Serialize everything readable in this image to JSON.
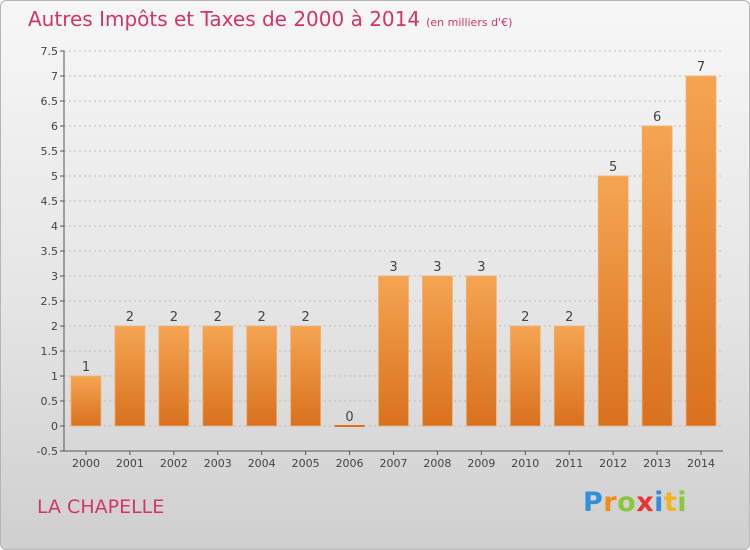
{
  "title": "Autres Impôts et Taxes de 2000 à 2014",
  "unit": "(en milliers d'€)",
  "commune": "LA CHAPELLE",
  "logo": {
    "text": "Proxiti",
    "letters": [
      "P",
      "r",
      "o",
      "x",
      "i",
      "t",
      "i"
    ],
    "colors": [
      "#2f8fd8",
      "#f28c1e",
      "#8cc63f",
      "#e8352f",
      "#2f8fd8",
      "#f2b51e",
      "#8cc63f"
    ]
  },
  "colors": {
    "bar_top": "#f5a552",
    "bar_bottom": "#d9711d",
    "title": "#d6336c",
    "axis": "#555555",
    "grid": "#bdbdbd"
  },
  "chart_data": {
    "type": "bar",
    "categories": [
      "2000",
      "2001",
      "2002",
      "2003",
      "2004",
      "2005",
      "2006",
      "2007",
      "2008",
      "2009",
      "2010",
      "2011",
      "2012",
      "2013",
      "2014"
    ],
    "values": [
      1,
      2,
      2,
      2,
      2,
      2,
      0,
      3,
      3,
      3,
      2,
      2,
      5,
      6,
      7
    ],
    "value_labels": [
      "1",
      "2",
      "2",
      "2",
      "2",
      "2",
      "0",
      "3",
      "3",
      "3",
      "2",
      "2",
      "5",
      "6",
      "7"
    ],
    "yticks": [
      "-0.5",
      "0",
      "0.5",
      "1",
      "1.5",
      "2",
      "2.5",
      "3",
      "3.5",
      "4",
      "4.5",
      "5",
      "5.5",
      "6",
      "6.5",
      "7",
      "7.5"
    ],
    "ylim": [
      -0.5,
      7.5
    ],
    "grid": true,
    "legend": false,
    "xlabel": "",
    "ylabel": ""
  }
}
